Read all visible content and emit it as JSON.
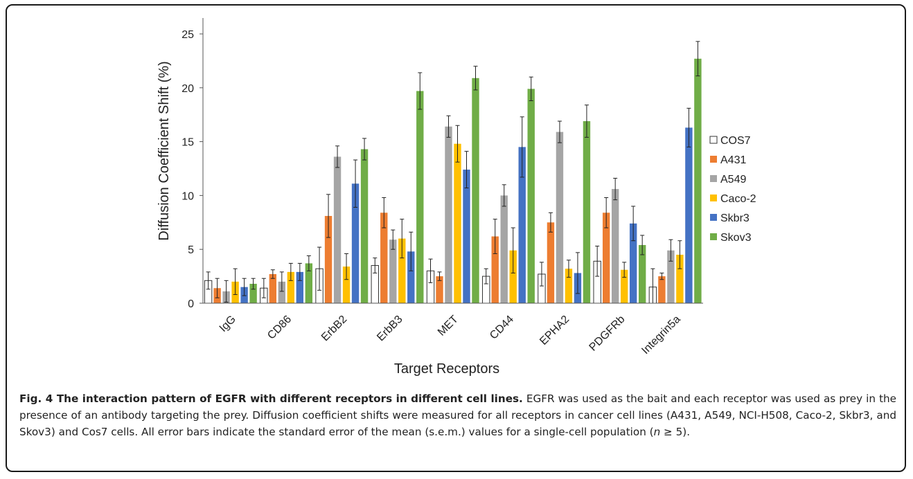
{
  "chart_data": {
    "type": "bar",
    "title": "",
    "xlabel": "Target Receptors",
    "ylabel": "Diffusion Coefficient Shift (%)",
    "ylim": [
      0,
      25
    ],
    "yticks": [
      0,
      5,
      10,
      15,
      20,
      25
    ],
    "grid": false,
    "legend_position": "right",
    "error_bars": true,
    "categories": [
      "IgG",
      "CD86",
      "ErbB2",
      "ErbB3",
      "MET",
      "CD44",
      "EPHA2",
      "PDGFRb",
      "Integrin5a"
    ],
    "series": [
      {
        "name": "COS7",
        "color": "#ffffff",
        "edge": "#333333",
        "values": [
          2.1,
          1.4,
          3.2,
          3.5,
          3.0,
          2.5,
          2.7,
          3.9,
          1.5
        ],
        "errors": [
          0.8,
          0.9,
          2.0,
          0.7,
          1.1,
          0.7,
          1.1,
          1.4,
          1.7
        ]
      },
      {
        "name": "A431",
        "color": "#ed7d31",
        "edge": "#ed7d31",
        "values": [
          1.4,
          2.7,
          8.1,
          8.4,
          2.5,
          6.2,
          7.5,
          8.4,
          2.5
        ],
        "errors": [
          0.9,
          0.4,
          2.0,
          1.4,
          0.4,
          1.6,
          0.9,
          1.4,
          0.3
        ]
      },
      {
        "name": "A549",
        "color": "#a5a5a5",
        "edge": "#a5a5a5",
        "values": [
          1.1,
          2.0,
          13.6,
          5.9,
          16.4,
          10.0,
          15.9,
          10.6,
          4.9
        ],
        "errors": [
          1.0,
          0.9,
          1.0,
          0.9,
          1.0,
          1.0,
          1.0,
          1.0,
          1.0
        ]
      },
      {
        "name": "Caco-2",
        "color": "#ffc000",
        "edge": "#ffc000",
        "values": [
          2.0,
          2.9,
          3.4,
          6.0,
          14.8,
          4.9,
          3.2,
          3.1,
          4.5
        ],
        "errors": [
          1.2,
          0.8,
          1.2,
          1.8,
          1.7,
          2.1,
          0.8,
          0.7,
          1.3
        ]
      },
      {
        "name": "Skbr3",
        "color": "#4472c4",
        "edge": "#4472c4",
        "values": [
          1.5,
          2.9,
          11.1,
          4.8,
          12.4,
          14.5,
          2.8,
          7.4,
          16.3
        ],
        "errors": [
          0.8,
          0.8,
          2.2,
          1.8,
          1.7,
          2.8,
          1.9,
          1.6,
          1.8
        ]
      },
      {
        "name": "Skov3",
        "color": "#70ad47",
        "edge": "#70ad47",
        "values": [
          1.8,
          3.7,
          14.3,
          19.7,
          20.9,
          19.9,
          16.9,
          5.4,
          22.7
        ],
        "errors": [
          0.5,
          0.7,
          1.0,
          1.7,
          1.1,
          1.1,
          1.5,
          0.9,
          1.6
        ]
      }
    ]
  },
  "caption": {
    "title": "Fig. 4 The interaction pattern of EGFR with different receptors in different cell lines.",
    "body_before_italic": " EGFR was used as the bait and each receptor was used as prey in the presence of an antibody targeting the prey. Diffusion coefficient shifts were measured for all receptors in cancer cell lines (A431, A549, NCI-H508, Caco-2, Skbr3, and Skov3) and Cos7 cells. All error bars indicate the standard error of the mean (s.e.m.) values for a single-cell population (",
    "italic": "n",
    "body_after_italic": " ≥ 5)."
  }
}
